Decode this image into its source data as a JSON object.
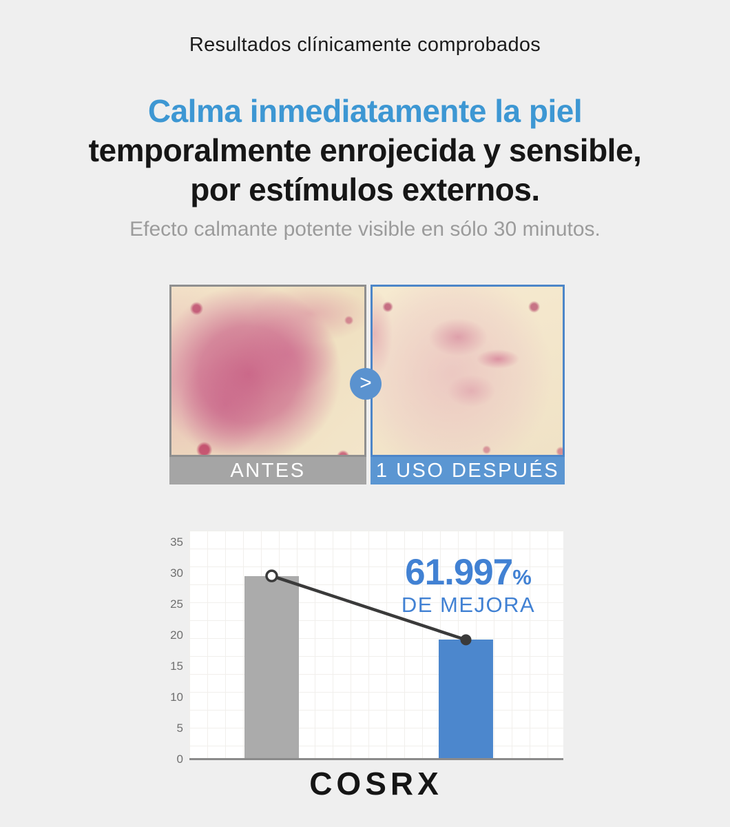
{
  "header": {
    "kicker": "Resultados clínicamente comprobados",
    "headline_line1": "Calma inmediatamente la piel",
    "headline_line2": "temporalmente enrojecida y sensible,",
    "headline_line3": "por estímulos externos.",
    "subtitle": "Efecto calmante potente visible en sólo 30 minutos."
  },
  "before_after": {
    "before_label": "ANTES",
    "after_label": "1 USO DESPUÉS",
    "arrow_symbol": ">"
  },
  "chart_data": {
    "type": "bar",
    "title": "",
    "xlabel": "",
    "ylabel": "",
    "categories": [
      "ANTES",
      "1 USO DESPUÉS"
    ],
    "values": [
      29.6,
      19.3
    ],
    "ylim": [
      0,
      36.9
    ],
    "y_ticks": [
      0,
      5,
      10,
      15,
      20,
      25,
      30,
      35
    ],
    "grid": true,
    "legend": "none",
    "bar_colors": [
      "#ababab",
      "#4c87cd"
    ],
    "connector_line": {
      "from_value": 29.6,
      "to_value": 19.3,
      "color": "#3a3a3a",
      "start_marker": "open-circle",
      "end_marker": "filled-circle"
    },
    "annotation": {
      "value": "61.997",
      "percent_sign": "%",
      "caption": "DE MEJORA",
      "color": "#4181d3"
    }
  },
  "footer": {
    "brand": "COSRX"
  },
  "colors": {
    "background": "#efefef",
    "headline_blue": "#3d97d3",
    "subtitle_gray": "#9b9b9b",
    "before_bar_gray": "#a5a5a5",
    "after_bar_blue": "#5b96d2",
    "arrow_circle_blue": "#5a92cf"
  }
}
